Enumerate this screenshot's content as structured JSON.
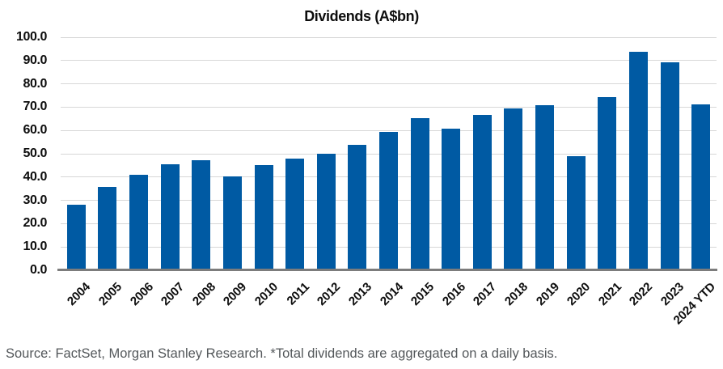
{
  "title": "Dividends (A$bn)",
  "source_note": "Source: FactSet, Morgan Stanley Research. *Total dividends are aggregated on a daily basis.",
  "colors": {
    "bar": "#005AA3",
    "gridline": "#D7D7D7",
    "axis_line": "#7C7C7C",
    "title_text": "#0d0d0d",
    "tick_text": "#0d0d0d",
    "source_text": "#54585b",
    "background": "#ffffff"
  },
  "chart_data": {
    "type": "bar",
    "title": "Dividends (A$bn)",
    "xlabel": "",
    "ylabel": "",
    "grid": true,
    "legend": "none",
    "ylim": [
      0,
      100
    ],
    "ytick_step": 10,
    "ytick_labels": [
      "0.0",
      "10.0",
      "20.0",
      "30.0",
      "40.0",
      "50.0",
      "60.0",
      "70.0",
      "80.0",
      "90.0",
      "100.0"
    ],
    "categories": [
      "2004",
      "2005",
      "2006",
      "2007",
      "2008",
      "2009",
      "2010",
      "2011",
      "2012",
      "2013",
      "2014",
      "2015",
      "2016",
      "2017",
      "2018",
      "2019",
      "2020",
      "2021",
      "2022",
      "2023",
      "2024 YTD"
    ],
    "values": [
      28.2,
      35.6,
      41.1,
      45.4,
      47.4,
      40.4,
      45.0,
      47.9,
      49.9,
      53.8,
      59.3,
      65.2,
      60.8,
      66.7,
      69.5,
      71.0,
      49.0,
      74.3,
      93.7,
      89.2,
      71.2
    ]
  }
}
